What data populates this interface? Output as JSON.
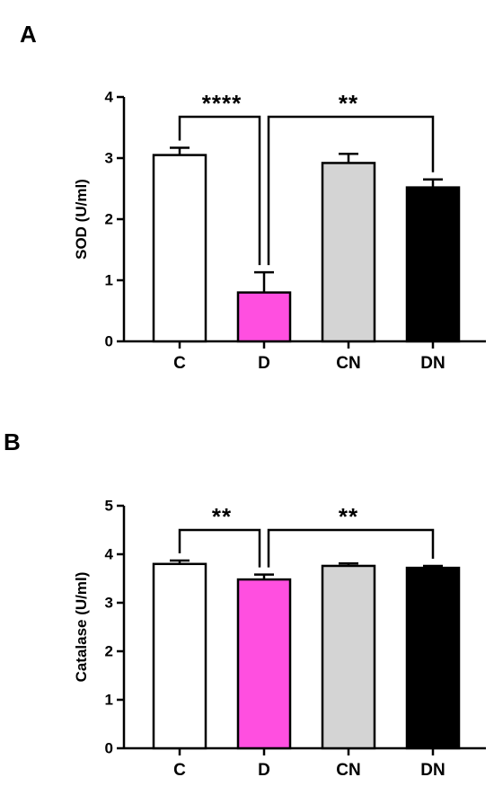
{
  "chart_data": [
    {
      "type": "bar",
      "panel_label": "A",
      "categories": [
        "C",
        "D",
        "CN",
        "DN"
      ],
      "values": [
        3.05,
        0.8,
        2.92,
        2.52
      ],
      "errors": [
        0.12,
        0.33,
        0.15,
        0.13
      ],
      "bar_colors": [
        "#ffffff",
        "#ff4fe0",
        "#d4d4d4",
        "#000000"
      ],
      "xlabel": "",
      "ylabel": "SOD (U/ml)",
      "ylim": [
        0,
        4
      ],
      "yticks": [
        0,
        1,
        2,
        3,
        4
      ],
      "grid": false,
      "significance": [
        {
          "from": "C",
          "to": "D",
          "label": "****"
        },
        {
          "from": "D",
          "to": "DN",
          "label": "**"
        }
      ]
    },
    {
      "type": "bar",
      "panel_label": "B",
      "categories": [
        "C",
        "D",
        "CN",
        "DN"
      ],
      "values": [
        3.8,
        3.48,
        3.76,
        3.72
      ],
      "errors": [
        0.07,
        0.1,
        0.05,
        0.04
      ],
      "bar_colors": [
        "#ffffff",
        "#ff4fe0",
        "#d4d4d4",
        "#000000"
      ],
      "xlabel": "",
      "ylabel": "Catalase (U/ml)",
      "ylim": [
        0,
        5
      ],
      "yticks": [
        0,
        1,
        2,
        3,
        4,
        5
      ],
      "grid": false,
      "significance": [
        {
          "from": "C",
          "to": "D",
          "label": "**"
        },
        {
          "from": "D",
          "to": "DN",
          "label": "**"
        }
      ]
    }
  ]
}
